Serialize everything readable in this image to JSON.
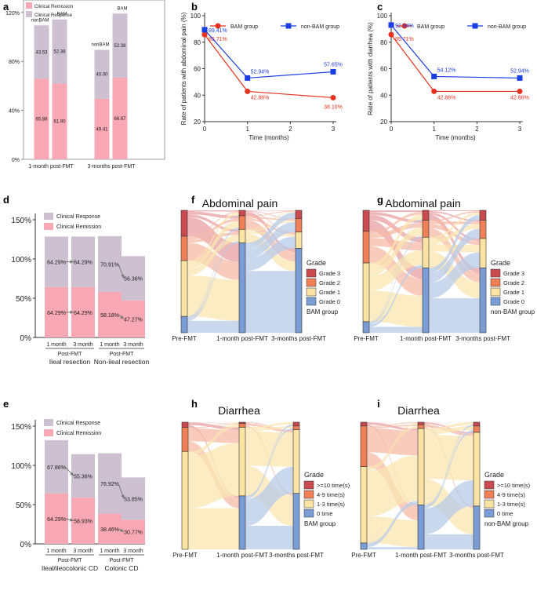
{
  "colors": {
    "response": "#cdc0d0",
    "remission": "#f8a7b5",
    "bam": "#e8311e",
    "nonbam": "#1a3ee6",
    "grade3": "#c94a4f",
    "grade2": "#ef7f56",
    "grade1": "#fbe3a4",
    "grade0": "#7b9dd6",
    "grade0_flow": "#b8cbe8",
    "grade1_flow": "#f9e5b0",
    "grade2_flow": "#f5b9a5",
    "grade3_flow": "#e8a0a4"
  },
  "chart_data": [
    {
      "id": "a",
      "panel_label": "a",
      "type": "bar",
      "legend": [
        "Clinical Response",
        "Clinical Remission"
      ],
      "y_ticks": [
        "0%",
        "40%",
        "80%",
        "120%"
      ],
      "ylim": [
        0,
        125
      ],
      "group_labels": [
        "1-month post-FMT",
        "3-months post-FMT"
      ],
      "bars": [
        {
          "label": "nonBAM",
          "remission": 65.88,
          "response": 43.53,
          "rem_label": "65.88",
          "resp_label": "43.53"
        },
        {
          "label": "BAM",
          "remission": 61.9,
          "response": 52.38,
          "rem_label": "61.90",
          "resp_label": "52.38"
        },
        {
          "label": "nonBAM",
          "remission": 49.41,
          "response": 40.0,
          "rem_label": "49.41",
          "resp_label": "40.00"
        },
        {
          "label": "BAM",
          "remission": 66.67,
          "response": 52.38,
          "rem_label": "66.67",
          "resp_label": "52.38"
        }
      ]
    },
    {
      "id": "b",
      "panel_label": "b",
      "type": "line",
      "ylabel": "Rate of patients with abdominal pain (%)",
      "xlabel": "Time (months)",
      "x_ticks": [
        "0",
        "1",
        "2",
        "3"
      ],
      "y_ticks": [
        "20",
        "40",
        "60",
        "80",
        "100"
      ],
      "xlim": [
        0,
        3
      ],
      "ylim": [
        20,
        100
      ],
      "series": [
        {
          "name": "BAM group",
          "x": [
            0,
            1,
            3
          ],
          "y": [
            85.71,
            42.86,
            38.1
          ],
          "labels": [
            "85.71%",
            "42.86%",
            "38.10%"
          ]
        },
        {
          "name": "non-BAM group",
          "x": [
            0,
            1,
            3
          ],
          "y": [
            89.41,
            52.94,
            57.65
          ],
          "labels": [
            "89.41%",
            "52.94%",
            "57.65%"
          ]
        }
      ]
    },
    {
      "id": "c",
      "panel_label": "c",
      "type": "line",
      "ylabel": "Rate of patients with diarrhea (%)",
      "xlabel": "Time (months)",
      "x_ticks": [
        "0",
        "1",
        "2",
        "3"
      ],
      "y_ticks": [
        "20",
        "40",
        "60",
        "80",
        "100"
      ],
      "xlim": [
        0,
        3
      ],
      "ylim": [
        20,
        100
      ],
      "series": [
        {
          "name": "BAM group",
          "x": [
            0,
            1,
            3
          ],
          "y": [
            85.71,
            42.86,
            42.86
          ],
          "labels": [
            "85.71%",
            "42.86%",
            "42.86%"
          ]
        },
        {
          "name": "non-BAM group",
          "x": [
            0,
            1,
            3
          ],
          "y": [
            92.94,
            54.12,
            52.94
          ],
          "labels": [
            "92.94%",
            "54.12%",
            "52.94%"
          ]
        }
      ]
    },
    {
      "id": "d",
      "panel_label": "d",
      "type": "bar",
      "legend": [
        "Clinical Response",
        "Clinical Remission"
      ],
      "y_ticks": [
        "0%",
        "50%",
        "100%",
        "150%"
      ],
      "ylim": [
        0,
        155
      ],
      "bars": [
        {
          "label": "1 month",
          "remission": 64.29,
          "response": 64.29,
          "rem_label": "64.29%",
          "resp_label": "64.29%"
        },
        {
          "label": "3 month",
          "remission": 64.29,
          "response": 64.29,
          "rem_label": "64.29%",
          "resp_label": "64.29%"
        },
        {
          "label": "1 month",
          "remission": 58.18,
          "response": 70.91,
          "rem_label": "58.18%",
          "resp_label": "70.91%"
        },
        {
          "label": "3 month",
          "remission": 47.27,
          "response": 56.36,
          "rem_label": "47.27%",
          "resp_label": "56.36%"
        }
      ],
      "group_sublabels": [
        "Post-FMT",
        "Post-FMT"
      ],
      "group_labels": [
        "Ileal resection",
        "Non-ileal resection"
      ]
    },
    {
      "id": "e",
      "panel_label": "e",
      "type": "bar",
      "legend": [
        "Clinical Response",
        "Clinical Remission"
      ],
      "y_ticks": [
        "0%",
        "50%",
        "100%",
        "150%"
      ],
      "ylim": [
        0,
        155
      ],
      "bars": [
        {
          "label": "1 month",
          "remission": 64.29,
          "response": 67.86,
          "rem_label": "64.29%",
          "resp_label": "67.86%"
        },
        {
          "label": "3 month",
          "remission": 58.93,
          "response": 55.36,
          "rem_label": "58.93%",
          "resp_label": "55.36%"
        },
        {
          "label": "1 month",
          "remission": 38.46,
          "response": 76.92,
          "rem_label": "38.46%",
          "resp_label": "76.92%"
        },
        {
          "label": "3 month",
          "remission": 30.77,
          "response": 53.85,
          "rem_label": "30.77%",
          "resp_label": "53.85%"
        }
      ],
      "group_sublabels": [
        "Post-FMT",
        "Post-FMT"
      ],
      "group_labels": [
        "Ileal/ileocolonic CD",
        "Colonic CD"
      ]
    },
    {
      "id": "f",
      "panel_label": "f",
      "type": "sankey",
      "title": "Abdominal pain",
      "group": "BAM group",
      "legend_title": "Grade",
      "categories": [
        "Grade 3",
        "Grade 2",
        "Grade 1",
        "Grade 0"
      ],
      "stages": [
        "Pre-FMT",
        "1-month post-FMT",
        "3-months post-FMT"
      ],
      "stage_values": [
        [
          19,
          18,
          41,
          12
        ],
        [
          4,
          10,
          10,
          66
        ],
        [
          6,
          10,
          12,
          62
        ]
      ]
    },
    {
      "id": "g",
      "panel_label": "g",
      "type": "sankey",
      "title": "Abdominal pain",
      "group": "non-BAM group",
      "legend_title": "Grade",
      "categories": [
        "Grade 3",
        "Grade 2",
        "Grade 1",
        "Grade 0"
      ],
      "stages": [
        "Pre-FMT",
        "1-month post-FMT",
        "3-months post-FMT"
      ],
      "stage_values": [
        [
          17,
          26,
          48,
          9
        ],
        [
          8,
          14,
          25,
          53
        ],
        [
          8,
          15,
          24,
          53
        ]
      ]
    },
    {
      "id": "h",
      "panel_label": "h",
      "type": "sankey",
      "title": "Diarrhea",
      "group": "BAM group",
      "legend_title": "Grade",
      "categories": [
        ">=10 time(s)",
        "4-9 time(s)",
        "1-3 time(s)",
        "0 time"
      ],
      "stages": [
        "Pre-FMT",
        "1-month post-FMT",
        "3-months post-FMT"
      ],
      "stage_values": [
        [
          4,
          19,
          77,
          0
        ],
        [
          1,
          3,
          54,
          42
        ],
        [
          3,
          3,
          50,
          44
        ]
      ]
    },
    {
      "id": "i",
      "panel_label": "i",
      "type": "sankey",
      "title": "Diarrhea",
      "group": "non-BAM group",
      "legend_title": "Grade",
      "categories": [
        ">=10 time(s)",
        "4-9 time(s)",
        "1-3 time(s)",
        "0 time"
      ],
      "stages": [
        "Pre-FMT",
        "1-month post-FMT",
        "3-months post-FMT"
      ],
      "stage_values": [
        [
          3,
          32,
          60,
          5
        ],
        [
          2,
          3,
          60,
          35
        ],
        [
          3,
          5,
          58,
          34
        ]
      ]
    }
  ]
}
